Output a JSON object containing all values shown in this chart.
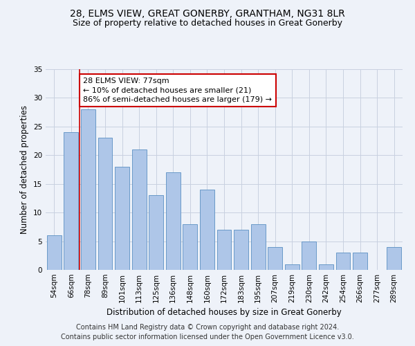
{
  "title": "28, ELMS VIEW, GREAT GONERBY, GRANTHAM, NG31 8LR",
  "subtitle": "Size of property relative to detached houses in Great Gonerby",
  "xlabel": "Distribution of detached houses by size in Great Gonerby",
  "ylabel": "Number of detached properties",
  "categories": [
    "54sqm",
    "66sqm",
    "78sqm",
    "89sqm",
    "101sqm",
    "113sqm",
    "125sqm",
    "136sqm",
    "148sqm",
    "160sqm",
    "172sqm",
    "183sqm",
    "195sqm",
    "207sqm",
    "219sqm",
    "230sqm",
    "242sqm",
    "254sqm",
    "266sqm",
    "277sqm",
    "289sqm"
  ],
  "values": [
    6,
    24,
    28,
    23,
    18,
    21,
    13,
    17,
    8,
    14,
    7,
    7,
    8,
    4,
    1,
    5,
    1,
    3,
    3,
    0,
    4
  ],
  "bar_color": "#aec6e8",
  "bar_edge_color": "#5a8fc2",
  "annotation_text": "28 ELMS VIEW: 77sqm\n← 10% of detached houses are smaller (21)\n86% of semi-detached houses are larger (179) →",
  "annotation_box_color": "#ffffff",
  "annotation_box_edge_color": "#cc0000",
  "marker_line_color": "#cc0000",
  "ylim": [
    0,
    35
  ],
  "yticks": [
    0,
    5,
    10,
    15,
    20,
    25,
    30,
    35
  ],
  "footer_line1": "Contains HM Land Registry data © Crown copyright and database right 2024.",
  "footer_line2": "Contains public sector information licensed under the Open Government Licence v3.0.",
  "bg_color": "#eef2f9",
  "title_fontsize": 10,
  "subtitle_fontsize": 9,
  "axis_label_fontsize": 8.5,
  "tick_fontsize": 7.5,
  "annotation_fontsize": 8,
  "footer_fontsize": 7
}
